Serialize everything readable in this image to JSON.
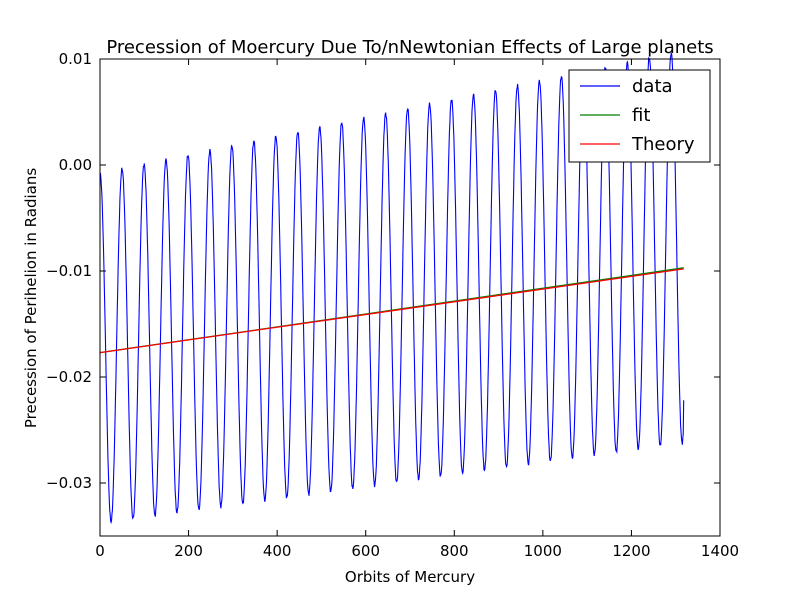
{
  "chart_data": {
    "type": "line",
    "title": "Precession of Moercury Due To/nNewtonian Effects of Large planets",
    "xlabel": "Orbits of Mercury",
    "ylabel": "Precession of Perihelion in Radians",
    "xlim": [
      0,
      1400
    ],
    "ylim": [
      -0.035,
      0.01
    ],
    "xticks": [
      0,
      200,
      400,
      600,
      800,
      1000,
      1200,
      1400
    ],
    "xtick_labels": [
      "0",
      "200",
      "400",
      "600",
      "800",
      "1000",
      "1200",
      "1400"
    ],
    "yticks": [
      0.01,
      0.0,
      -0.01,
      -0.02,
      -0.03
    ],
    "ytick_labels": [
      "0.01",
      "0.00",
      "−0.01",
      "−0.02",
      "−0.03"
    ],
    "grid": false,
    "legend_placement": "top-right",
    "series": [
      {
        "name": "data",
        "color": "#0000ff",
        "style": "oscillation",
        "x_start": 0,
        "x_end": 1318,
        "y_start": -0.0012,
        "y_end": -0.0222,
        "period": 49.6,
        "first_trough_x": 25,
        "peak_line": [
          [
            0,
            -0.0008
          ],
          [
            1318,
            0.0108
          ]
        ],
        "trough_line": [
          [
            0,
            -0.0338
          ],
          [
            1318,
            -0.0262
          ]
        ],
        "visible_peaks": [
          [
            50,
            -0.0003
          ],
          [
            100,
            -0.0003
          ],
          [
            150,
            0.0
          ],
          [
            200,
            0.0005
          ],
          [
            249,
            0.0005
          ],
          [
            299,
            0.001
          ],
          [
            349,
            0.0015
          ],
          [
            398,
            0.0015
          ],
          [
            448,
            0.0015
          ],
          [
            498,
            0.002
          ],
          [
            547,
            0.002
          ],
          [
            597,
            0.0025
          ],
          [
            647,
            0.003
          ],
          [
            697,
            0.0035
          ],
          [
            746,
            0.0035
          ],
          [
            796,
            0.004
          ],
          [
            846,
            0.0045
          ],
          [
            895,
            0.0045
          ],
          [
            945,
            0.005
          ],
          [
            995,
            0.0055
          ],
          [
            1044,
            0.0055
          ]
        ],
        "visible_troughs": [
          [
            25,
            -0.0337
          ],
          [
            75,
            -0.0332
          ],
          [
            125,
            -0.0332
          ],
          [
            175,
            -0.0328
          ],
          [
            224,
            -0.0325
          ],
          [
            274,
            -0.0322
          ],
          [
            324,
            -0.0318
          ],
          [
            373,
            -0.0315
          ],
          [
            423,
            -0.031
          ],
          [
            473,
            -0.0308
          ],
          [
            522,
            -0.0304
          ],
          [
            572,
            -0.03
          ],
          [
            622,
            -0.0297
          ],
          [
            671,
            -0.0293
          ],
          [
            721,
            -0.029
          ],
          [
            771,
            -0.0286
          ],
          [
            820,
            -0.0283
          ],
          [
            870,
            -0.0279
          ],
          [
            920,
            -0.0275
          ],
          [
            969,
            -0.0272
          ],
          [
            1019,
            -0.0268
          ],
          [
            1069,
            -0.0266
          ],
          [
            1118,
            -0.0264
          ],
          [
            1168,
            -0.0262
          ],
          [
            1218,
            -0.0262
          ],
          [
            1267,
            -0.026
          ],
          [
            1308,
            -0.0261
          ]
        ]
      },
      {
        "name": "fit",
        "color": "#008000",
        "x": [
          0,
          1318
        ],
        "y": [
          -0.0177,
          -0.0097
        ]
      },
      {
        "name": "Theory",
        "color": "#ff0000",
        "x": [
          0,
          1318
        ],
        "y": [
          -0.0177,
          -0.0098
        ]
      }
    ]
  }
}
